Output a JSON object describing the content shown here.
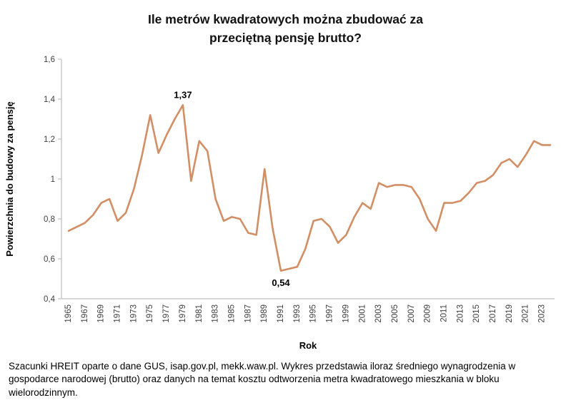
{
  "header": {
    "title_line1": "Ile metrów kwadratowych można zbudować za",
    "title_line2": "przeciętną pensję brutto?"
  },
  "footer": {
    "text": "Szacunki HREIT oparte o dane GUS, isap.gov.pl, mekk.waw.pl. Wykres przedstawia iloraz średniego wynagrodzenia w gospodarce narodowej (brutto) oraz danych na temat kosztu odtworzenia metra kwadratowego mieszkania w bloku wielorodzinnym."
  },
  "chart_data": {
    "type": "line",
    "title": "Ile metrów kwadratowych można zbudować za przeciętną pensję brutto?",
    "xlabel": "Rok",
    "ylabel": "Powierzchnia do budowy za pensję",
    "ylim": [
      0.4,
      1.6
    ],
    "yticks": [
      0.4,
      0.6,
      0.8,
      1.0,
      1.2,
      1.4,
      1.6
    ],
    "ytick_labels": [
      "0,4",
      "0,6",
      "0,8",
      "1",
      "1,2",
      "1,4",
      "1,6"
    ],
    "xtick_years": [
      1965,
      1967,
      1969,
      1971,
      1973,
      1975,
      1977,
      1979,
      1981,
      1983,
      1985,
      1987,
      1989,
      1991,
      1993,
      1995,
      1997,
      1999,
      2001,
      2003,
      2005,
      2007,
      2009,
      2011,
      2013,
      2015,
      2017,
      2019,
      2021,
      2023
    ],
    "grid": false,
    "legend": "none",
    "line_color": "#D28E64",
    "x": [
      1965,
      1966,
      1967,
      1968,
      1969,
      1970,
      1971,
      1972,
      1973,
      1974,
      1975,
      1976,
      1977,
      1978,
      1979,
      1980,
      1981,
      1982,
      1983,
      1984,
      1985,
      1986,
      1987,
      1988,
      1989,
      1990,
      1991,
      1992,
      1993,
      1994,
      1995,
      1996,
      1997,
      1998,
      1999,
      2000,
      2001,
      2002,
      2003,
      2004,
      2005,
      2006,
      2007,
      2008,
      2009,
      2010,
      2011,
      2012,
      2013,
      2014,
      2015,
      2016,
      2017,
      2018,
      2019,
      2020,
      2021,
      2022,
      2023,
      2024
    ],
    "values": [
      0.74,
      0.76,
      0.78,
      0.82,
      0.88,
      0.9,
      0.79,
      0.83,
      0.95,
      1.12,
      1.32,
      1.13,
      1.22,
      1.3,
      1.37,
      0.99,
      1.19,
      1.14,
      0.9,
      0.79,
      0.81,
      0.8,
      0.73,
      0.72,
      1.05,
      0.75,
      0.54,
      0.55,
      0.56,
      0.65,
      0.79,
      0.8,
      0.76,
      0.68,
      0.72,
      0.81,
      0.88,
      0.85,
      0.98,
      0.96,
      0.97,
      0.97,
      0.96,
      0.9,
      0.8,
      0.74,
      0.88,
      0.88,
      0.89,
      0.93,
      0.98,
      0.99,
      1.02,
      1.08,
      1.1,
      1.06,
      1.12,
      1.19,
      1.17,
      1.17
    ],
    "annotations": [
      {
        "year": 1979,
        "value": 1.37,
        "label": "1,37",
        "position": "above"
      },
      {
        "year": 1991,
        "value": 0.54,
        "label": "0,54",
        "position": "below"
      }
    ]
  }
}
